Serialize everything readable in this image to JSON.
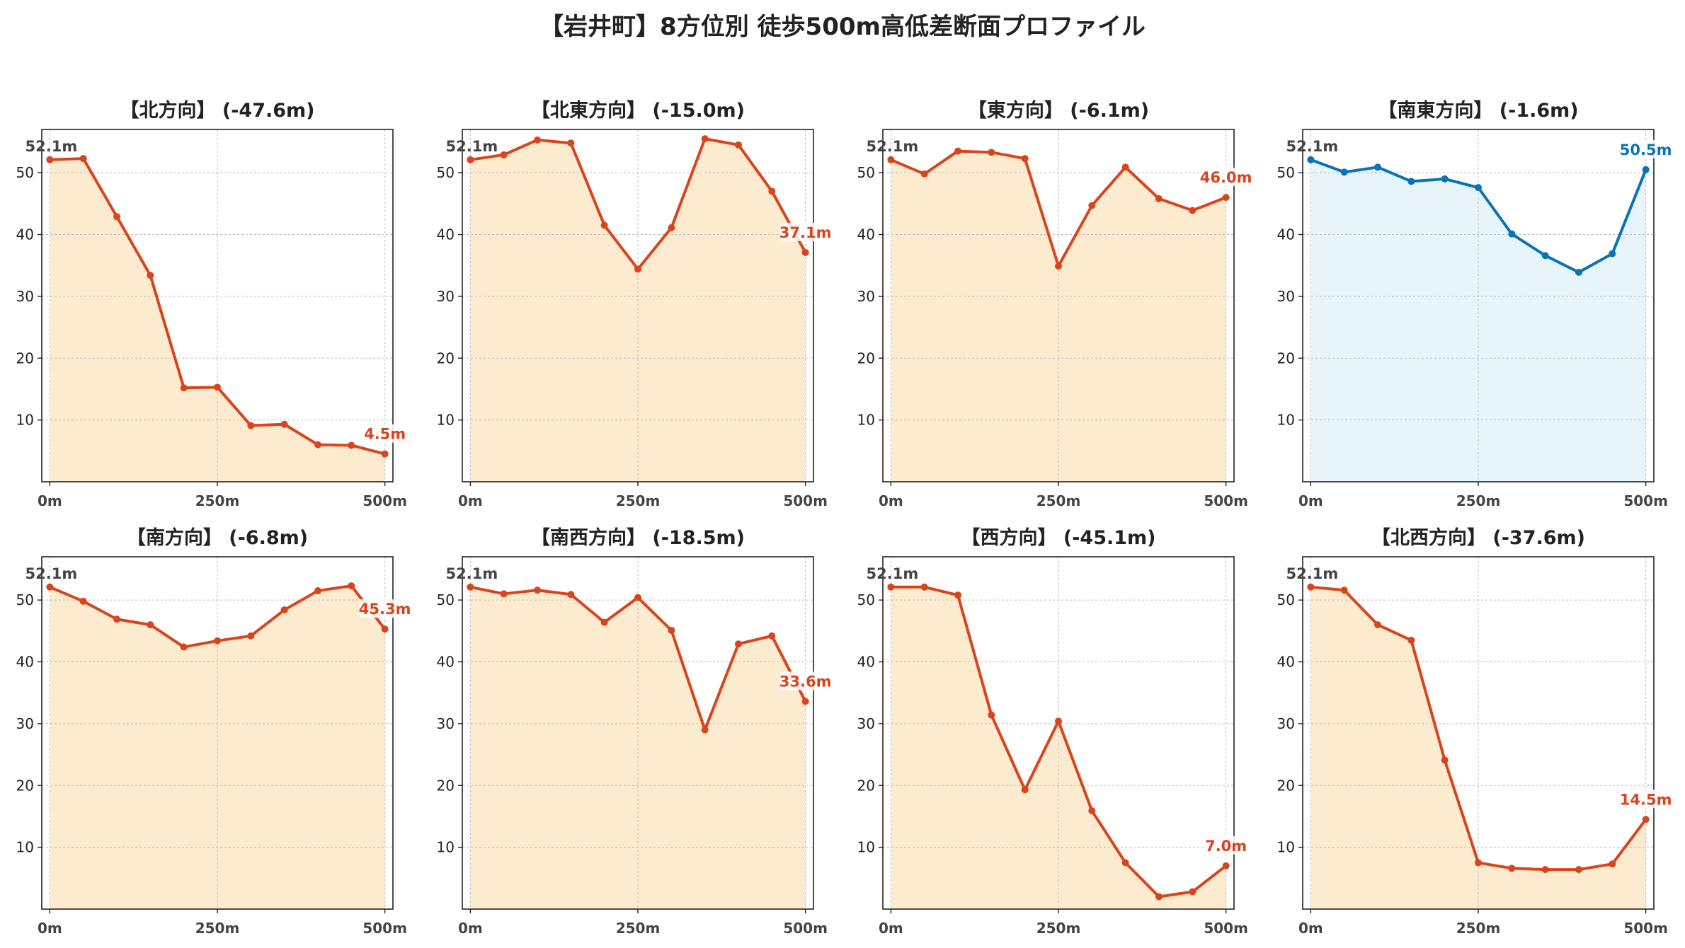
{
  "figure": {
    "suptitle": "【岩井町】8方位別 徒歩500m高低差断面プロファイル"
  },
  "colors": {
    "descent_line": "#d9441c",
    "descent_fill": "#fdebd0",
    "ascent_line": "#0a72b5",
    "ascent_fill": "#e7f5fb",
    "start_label": "#444444",
    "grid": "#bbbbbb",
    "tick_text": "#444444"
  },
  "chart_data": [
    {
      "type": "area",
      "title": "【北方向】 (-47.6m)",
      "color_scheme": "descent",
      "x": [
        0,
        50,
        100,
        150,
        200,
        250,
        300,
        350,
        400,
        450,
        500
      ],
      "y": [
        52.1,
        52.3,
        42.9,
        33.4,
        15.2,
        15.3,
        9.1,
        9.3,
        6.0,
        5.9,
        4.5
      ],
      "xticks": [
        {
          "v": 0,
          "label": "0m"
        },
        {
          "v": 250,
          "label": "250m"
        },
        {
          "v": 500,
          "label": "500m"
        }
      ],
      "yticks": [
        10,
        20,
        30,
        40,
        50
      ],
      "start_label": "52.1m",
      "end_label": "4.5m",
      "xlim": [
        -12,
        512
      ],
      "ylim": [
        0,
        57
      ],
      "grid": true
    },
    {
      "type": "area",
      "title": "【北東方向】 (-15.0m)",
      "color_scheme": "descent",
      "x": [
        0,
        50,
        100,
        150,
        200,
        250,
        300,
        350,
        400,
        450,
        500
      ],
      "y": [
        52.1,
        52.9,
        55.3,
        54.8,
        41.5,
        34.4,
        41.1,
        55.5,
        54.5,
        47.0,
        37.1
      ],
      "xticks": [
        {
          "v": 0,
          "label": "0m"
        },
        {
          "v": 250,
          "label": "250m"
        },
        {
          "v": 500,
          "label": "500m"
        }
      ],
      "yticks": [
        10,
        20,
        30,
        40,
        50
      ],
      "start_label": "52.1m",
      "end_label": "37.1m",
      "xlim": [
        -12,
        512
      ],
      "ylim": [
        0,
        57
      ],
      "grid": true
    },
    {
      "type": "area",
      "title": "【東方向】 (-6.1m)",
      "color_scheme": "descent",
      "x": [
        0,
        50,
        100,
        150,
        200,
        250,
        300,
        350,
        400,
        450,
        500
      ],
      "y": [
        52.1,
        49.8,
        53.5,
        53.3,
        52.3,
        34.9,
        44.7,
        50.9,
        45.8,
        43.9,
        46.0
      ],
      "xticks": [
        {
          "v": 0,
          "label": "0m"
        },
        {
          "v": 250,
          "label": "250m"
        },
        {
          "v": 500,
          "label": "500m"
        }
      ],
      "yticks": [
        10,
        20,
        30,
        40,
        50
      ],
      "start_label": "52.1m",
      "end_label": "46.0m",
      "xlim": [
        -12,
        512
      ],
      "ylim": [
        0,
        57
      ],
      "grid": true
    },
    {
      "type": "area",
      "title": "【南東方向】 (-1.6m)",
      "color_scheme": "ascent",
      "x": [
        0,
        50,
        100,
        150,
        200,
        250,
        300,
        350,
        400,
        450,
        500
      ],
      "y": [
        52.1,
        50.1,
        50.9,
        48.6,
        49.0,
        47.6,
        40.1,
        36.6,
        33.9,
        36.9,
        50.5
      ],
      "xticks": [
        {
          "v": 0,
          "label": "0m"
        },
        {
          "v": 250,
          "label": "250m"
        },
        {
          "v": 500,
          "label": "500m"
        }
      ],
      "yticks": [
        10,
        20,
        30,
        40,
        50
      ],
      "start_label": "52.1m",
      "end_label": "50.5m",
      "xlim": [
        -12,
        512
      ],
      "ylim": [
        0,
        57
      ],
      "grid": true
    },
    {
      "type": "area",
      "title": "【南方向】 (-6.8m)",
      "color_scheme": "descent",
      "x": [
        0,
        50,
        100,
        150,
        200,
        250,
        300,
        350,
        400,
        450,
        500
      ],
      "y": [
        52.1,
        49.8,
        46.9,
        46.0,
        42.4,
        43.4,
        44.2,
        48.4,
        51.5,
        52.3,
        45.3
      ],
      "xticks": [
        {
          "v": 0,
          "label": "0m"
        },
        {
          "v": 250,
          "label": "250m"
        },
        {
          "v": 500,
          "label": "500m"
        }
      ],
      "yticks": [
        10,
        20,
        30,
        40,
        50
      ],
      "start_label": "52.1m",
      "end_label": "45.3m",
      "xlim": [
        -12,
        512
      ],
      "ylim": [
        0,
        57
      ],
      "grid": true
    },
    {
      "type": "area",
      "title": "【南西方向】 (-18.5m)",
      "color_scheme": "descent",
      "x": [
        0,
        50,
        100,
        150,
        200,
        250,
        300,
        350,
        400,
        450,
        500
      ],
      "y": [
        52.1,
        51.0,
        51.6,
        50.9,
        46.4,
        50.4,
        45.1,
        29.0,
        42.9,
        44.2,
        33.6
      ],
      "xticks": [
        {
          "v": 0,
          "label": "0m"
        },
        {
          "v": 250,
          "label": "250m"
        },
        {
          "v": 500,
          "label": "500m"
        }
      ],
      "yticks": [
        10,
        20,
        30,
        40,
        50
      ],
      "start_label": "52.1m",
      "end_label": "33.6m",
      "xlim": [
        -12,
        512
      ],
      "ylim": [
        0,
        57
      ],
      "grid": true
    },
    {
      "type": "area",
      "title": "【西方向】 (-45.1m)",
      "color_scheme": "descent",
      "x": [
        0,
        50,
        100,
        150,
        200,
        250,
        300,
        350,
        400,
        450,
        500
      ],
      "y": [
        52.1,
        52.1,
        50.8,
        31.4,
        19.3,
        30.4,
        15.9,
        7.5,
        2.0,
        2.8,
        7.0
      ],
      "xticks": [
        {
          "v": 0,
          "label": "0m"
        },
        {
          "v": 250,
          "label": "250m"
        },
        {
          "v": 500,
          "label": "500m"
        }
      ],
      "yticks": [
        10,
        20,
        30,
        40,
        50
      ],
      "start_label": "52.1m",
      "end_label": "7.0m",
      "xlim": [
        -12,
        512
      ],
      "ylim": [
        0,
        57
      ],
      "grid": true
    },
    {
      "type": "area",
      "title": "【北西方向】 (-37.6m)",
      "color_scheme": "descent",
      "x": [
        0,
        50,
        100,
        150,
        200,
        250,
        300,
        350,
        400,
        450,
        500
      ],
      "y": [
        52.1,
        51.6,
        46.0,
        43.5,
        24.1,
        7.5,
        6.6,
        6.4,
        6.4,
        7.3,
        14.5
      ],
      "xticks": [
        {
          "v": 0,
          "label": "0m"
        },
        {
          "v": 250,
          "label": "250m"
        },
        {
          "v": 500,
          "label": "500m"
        }
      ],
      "yticks": [
        10,
        20,
        30,
        40,
        50
      ],
      "start_label": "52.1m",
      "end_label": "14.5m",
      "xlim": [
        -12,
        512
      ],
      "ylim": [
        0,
        57
      ],
      "grid": true
    }
  ]
}
